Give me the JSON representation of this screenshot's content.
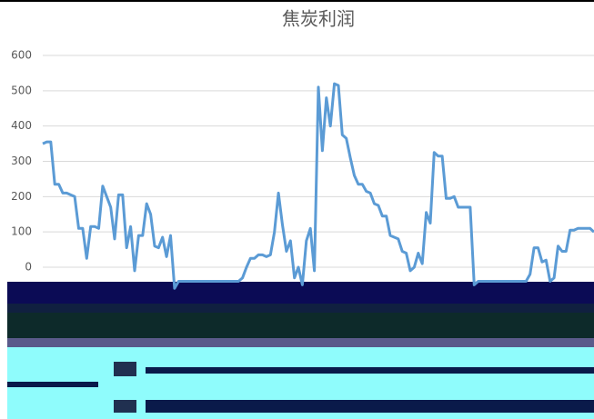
{
  "chart_data": {
    "type": "line",
    "title": "焦炭利润",
    "series": [
      {
        "name": null,
        "color": "#5b9bd5",
        "values": [
          350,
          355,
          355,
          235,
          235,
          210,
          210,
          205,
          200,
          110,
          110,
          25,
          115,
          115,
          110,
          230,
          200,
          170,
          80,
          205,
          205,
          55,
          115,
          -10,
          90,
          90,
          180,
          150,
          60,
          55,
          85,
          30,
          90,
          -60,
          -40,
          -40,
          -40,
          -40,
          -40,
          -40,
          -40,
          -40,
          -40,
          -40,
          -40,
          -40,
          -40,
          -40,
          -40,
          -40,
          -30,
          0,
          25,
          25,
          35,
          35,
          30,
          35,
          100,
          210,
          120,
          45,
          75,
          -30,
          0,
          -50,
          75,
          110,
          -10,
          510,
          330,
          480,
          400,
          520,
          515,
          375,
          365,
          310,
          260,
          235,
          235,
          215,
          210,
          180,
          175,
          145,
          145,
          90,
          85,
          80,
          45,
          40,
          -10,
          0,
          40,
          10,
          155,
          125,
          325,
          315,
          315,
          195,
          195,
          200,
          170,
          170,
          170,
          170,
          -50,
          -40,
          -40,
          -40,
          -40,
          -40,
          -40,
          -40,
          -40,
          -40,
          -40,
          -40,
          -40,
          -40,
          -20,
          55,
          55,
          15,
          20,
          -40,
          -30,
          60,
          45,
          45,
          105,
          105,
          110,
          110,
          110,
          110,
          100
        ]
      }
    ],
    "ylim": [
      -60,
      600
    ],
    "yticks": [
      0,
      100,
      200,
      300,
      400,
      500,
      600
    ],
    "grid": true
  }
}
